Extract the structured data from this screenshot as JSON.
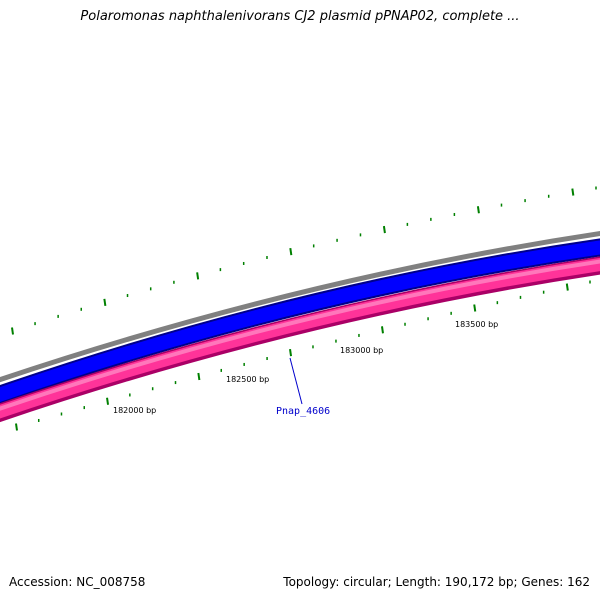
{
  "title": "Polaromonas naphthalenivorans CJ2 plasmid pPNAP02, complete ...",
  "footer": {
    "accession": "Accession: NC_008758",
    "summary": "Topology: circular; Length: 190,172 bp; Genes: 162"
  },
  "scale_labels": [
    "182000 bp",
    "182500 bp",
    "183000 bp",
    "183500 bp"
  ],
  "gene_label": "Pnap_4606",
  "colors": {
    "backbone": "#808080",
    "forward_strand": "#0000ff",
    "reverse_strand": "#ff3399",
    "reverse_strand_edge": "#aa0066",
    "gc_ticks": "#008000",
    "gene_label": "#0000cc"
  }
}
